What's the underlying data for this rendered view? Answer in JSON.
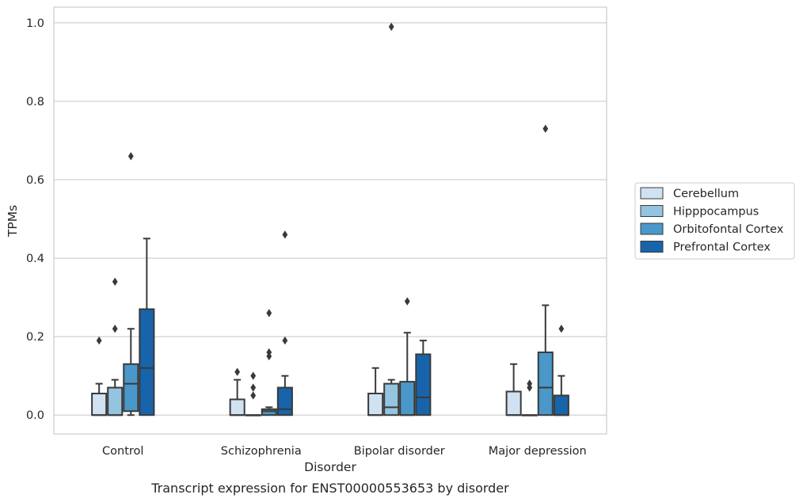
{
  "caption": "Transcript expression for ENST00000553653 by disorder",
  "chart_data": {
    "type": "box",
    "xlabel": "Disorder",
    "ylabel": "TPMs",
    "ylim": [
      -0.048,
      1.04
    ],
    "yticks": [
      0.0,
      0.2,
      0.4,
      0.6,
      0.8,
      1.0
    ],
    "ytick_labels": [
      "0.0",
      "0.2",
      "0.4",
      "0.6",
      "0.8",
      "1.0"
    ],
    "grid": "horizontal",
    "legend_position": "right",
    "categories": [
      "Control",
      "Schizophrenia",
      "Bipolar disorder",
      "Major depression"
    ],
    "series": [
      {
        "name": "Cerebellum",
        "color": "#d0e1f2",
        "boxes": [
          {
            "q1": 0.0,
            "median": 0.0,
            "q3": 0.055,
            "whisker_low": 0.0,
            "whisker_high": 0.08,
            "outliers": [
              0.19
            ]
          },
          {
            "q1": 0.0,
            "median": 0.0,
            "q3": 0.04,
            "whisker_low": 0.0,
            "whisker_high": 0.09,
            "outliers": [
              0.11
            ]
          },
          {
            "q1": 0.0,
            "median": 0.0,
            "q3": 0.055,
            "whisker_low": 0.0,
            "whisker_high": 0.12,
            "outliers": []
          },
          {
            "q1": 0.0,
            "median": 0.0,
            "q3": 0.06,
            "whisker_low": 0.0,
            "whisker_high": 0.13,
            "outliers": []
          }
        ]
      },
      {
        "name": "Hipppocampus",
        "color": "#94c4df",
        "boxes": [
          {
            "q1": 0.0,
            "median": 0.0,
            "q3": 0.07,
            "whisker_low": 0.0,
            "whisker_high": 0.09,
            "outliers": [
              0.22,
              0.34
            ]
          },
          {
            "q1": 0.0,
            "median": 0.0,
            "q3": 0.0,
            "whisker_low": 0.0,
            "whisker_high": 0.0,
            "outliers": [
              0.05,
              0.07,
              0.1
            ]
          },
          {
            "q1": 0.0,
            "median": 0.02,
            "q3": 0.08,
            "whisker_low": 0.0,
            "whisker_high": 0.09,
            "outliers": [
              0.99
            ]
          },
          {
            "q1": 0.0,
            "median": 0.0,
            "q3": 0.0,
            "whisker_low": 0.0,
            "whisker_high": 0.0,
            "outliers": [
              0.07,
              0.08
            ]
          }
        ]
      },
      {
        "name": "Orbitofontal Cortex",
        "color": "#4a98c9",
        "boxes": [
          {
            "q1": 0.01,
            "median": 0.08,
            "q3": 0.13,
            "whisker_low": 0.0,
            "whisker_high": 0.22,
            "outliers": [
              0.66
            ]
          },
          {
            "q1": 0.0,
            "median": 0.01,
            "q3": 0.015,
            "whisker_low": 0.0,
            "whisker_high": 0.02,
            "outliers": [
              0.15,
              0.16,
              0.26
            ]
          },
          {
            "q1": 0.0,
            "median": 0.0,
            "q3": 0.085,
            "whisker_low": 0.0,
            "whisker_high": 0.21,
            "outliers": [
              0.29
            ]
          },
          {
            "q1": 0.0,
            "median": 0.07,
            "q3": 0.16,
            "whisker_low": 0.0,
            "whisker_high": 0.28,
            "outliers": [
              0.73
            ]
          }
        ]
      },
      {
        "name": "Prefrontal Cortex",
        "color": "#1764ab",
        "boxes": [
          {
            "q1": 0.0,
            "median": 0.12,
            "q3": 0.27,
            "whisker_low": 0.0,
            "whisker_high": 0.45,
            "outliers": []
          },
          {
            "q1": 0.0,
            "median": 0.015,
            "q3": 0.07,
            "whisker_low": 0.0,
            "whisker_high": 0.1,
            "outliers": [
              0.19,
              0.46
            ]
          },
          {
            "q1": 0.0,
            "median": 0.045,
            "q3": 0.155,
            "whisker_low": 0.0,
            "whisker_high": 0.19,
            "outliers": []
          },
          {
            "q1": 0.0,
            "median": 0.0,
            "q3": 0.05,
            "whisker_low": 0.0,
            "whisker_high": 0.1,
            "outliers": [
              0.22
            ]
          }
        ]
      }
    ]
  }
}
